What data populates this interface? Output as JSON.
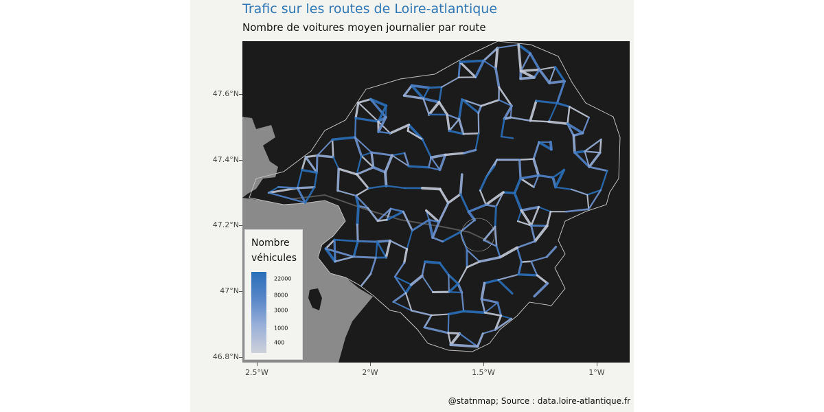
{
  "header": {
    "title": "Trafic sur les routes de Loire-atlantique",
    "subtitle": "Nombre de voitures moyen journalier par route"
  },
  "axes": {
    "y_ticks": [
      "47.6°N",
      "47.4°N",
      "47.2°N",
      "47°N",
      "46.8°N"
    ],
    "x_ticks": [
      "2.5°W",
      "2°W",
      "1.5°W",
      "1°W"
    ]
  },
  "legend": {
    "title": "Nombre véhicules",
    "labels": [
      "22000",
      "8000",
      "3000",
      "1000",
      "400"
    ]
  },
  "caption": "@statnmap; Source : data.loire-atlantique.fr",
  "colors": {
    "title": "#2f78b5",
    "background": "#f3f3ef",
    "map_land": "#1b1b1b",
    "sea": "#8a8a8a",
    "road_high": "#2a6fb9",
    "road_mid": "#6f93d0",
    "road_low": "#cdd0d9"
  }
}
